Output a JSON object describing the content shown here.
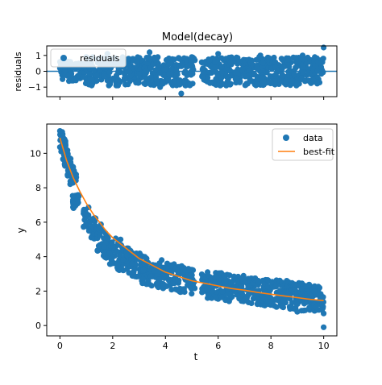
{
  "figure": {
    "title": "Model(decay)"
  },
  "colors": {
    "data": "#1f77b4",
    "fit": "#ff7f0e",
    "axes": "#000000",
    "legend_border": "#cccccc"
  },
  "chart_data": [
    {
      "type": "scatter",
      "panel": "residuals",
      "title": "Model(decay)",
      "xlabel": "",
      "ylabel": "residuals",
      "xlim": [
        -0.5,
        10.5
      ],
      "ylim": [
        -1.6,
        1.6
      ],
      "yticks": [
        -1,
        0,
        1
      ],
      "yticklabels": [
        "−1",
        "0",
        "1"
      ],
      "xticks": [
        0,
        2,
        4,
        6,
        8,
        10
      ],
      "show_xticklabels": false,
      "grid": false,
      "legend": {
        "position": "upper-left",
        "entries": [
          "residuals"
        ]
      },
      "reference_line": {
        "y": 0
      },
      "series": [
        {
          "name": "residuals",
          "style": "markers",
          "x": [
            0.0,
            0.1,
            0.2,
            0.3,
            0.4,
            1.0,
            1.4,
            1.8,
            2.2,
            2.6,
            3.0,
            3.4,
            3.8,
            4.2,
            4.6,
            5.0,
            5.6,
            6.0,
            6.4,
            6.8,
            7.2,
            7.6,
            8.0,
            8.4,
            8.8,
            9.2,
            9.6,
            10.0
          ],
          "y": [
            0.2,
            -0.5,
            0.5,
            -0.3,
            0.4,
            0.9,
            -0.6,
            1.1,
            -0.9,
            0.8,
            -0.2,
            1.2,
            -1.0,
            0.5,
            -1.4,
            0.9,
            -0.4,
            1.1,
            -0.8,
            0.6,
            -0.5,
            1.0,
            -0.7,
            0.8,
            -0.6,
            1.0,
            -0.5,
            1.5
          ],
          "band": {
            "x": [
              0.0,
              0.25,
              0.5,
              0.75,
              1.0,
              1.25,
              1.5,
              1.75,
              2.0,
              2.25,
              2.5,
              2.75,
              3.0,
              3.25,
              3.5,
              3.75,
              4.0,
              4.25,
              4.5,
              4.75,
              5.0,
              5.25,
              5.5,
              5.75,
              6.0,
              6.25,
              6.5,
              6.75,
              7.0,
              7.25,
              7.5,
              7.75,
              8.0,
              8.25,
              8.5,
              8.75,
              9.0,
              9.25,
              9.5,
              9.75,
              10.0
            ],
            "y": [
              0,
              0,
              0,
              0,
              0,
              0,
              0,
              0,
              0,
              0,
              0,
              0,
              0,
              0,
              0,
              0,
              0,
              0,
              0,
              0,
              0,
              0,
              0,
              0,
              0,
              0,
              0,
              0,
              0,
              0,
              0,
              0,
              0,
              0,
              0,
              0,
              0,
              0,
              0,
              0,
              0
            ],
            "spread": [
              0.7,
              0.7,
              0.6,
              0.5,
              0.9,
              0.9,
              0.9,
              0.9,
              0.9,
              0.9,
              0.9,
              0.9,
              0.9,
              0.9,
              0.9,
              0.9,
              0.9,
              0.9,
              0.9,
              0.9,
              0.9,
              0.0,
              0.7,
              0.9,
              0.9,
              0.9,
              0.9,
              0.9,
              0.9,
              0.9,
              0.9,
              0.9,
              0.9,
              0.9,
              0.9,
              0.9,
              0.9,
              0.9,
              0.9,
              0.9,
              0.9
            ]
          }
        }
      ]
    },
    {
      "type": "scatter",
      "panel": "fit",
      "title": "",
      "xlabel": "t",
      "ylabel": "y",
      "xlim": [
        -0.5,
        10.5
      ],
      "ylim": [
        -0.6,
        11.7
      ],
      "xticks": [
        0,
        2,
        4,
        6,
        8,
        10
      ],
      "xticklabels": [
        "0",
        "2",
        "4",
        "6",
        "8",
        "10"
      ],
      "yticks": [
        0,
        2,
        4,
        6,
        8,
        10
      ],
      "yticklabels": [
        "0",
        "2",
        "4",
        "6",
        "8",
        "10"
      ],
      "grid": false,
      "legend": {
        "position": "upper-right",
        "entries": [
          "data",
          "best-fit"
        ]
      },
      "series": [
        {
          "name": "data",
          "style": "markers",
          "band": {
            "x": [
              0.0,
              0.1,
              0.2,
              0.3,
              0.4,
              0.5,
              0.6,
              1.0,
              1.25,
              1.5,
              1.75,
              2.0,
              2.25,
              2.5,
              2.75,
              3.0,
              3.25,
              3.5,
              3.75,
              4.0,
              4.25,
              4.5,
              4.75,
              5.0,
              5.5,
              5.75,
              6.0,
              6.25,
              6.5,
              6.75,
              7.0,
              7.25,
              7.5,
              7.75,
              8.0,
              8.25,
              8.5,
              8.75,
              9.0,
              9.25,
              9.5,
              9.75,
              10.0
            ],
            "y": [
              11.0,
              10.5,
              10.0,
              9.5,
              9.0,
              8.6,
              7.2,
              6.3,
              5.6,
              5.1,
              4.7,
              4.3,
              4.0,
              3.8,
              3.6,
              3.4,
              3.2,
              3.1,
              3.0,
              2.9,
              2.8,
              2.7,
              2.6,
              2.5,
              2.4,
              2.35,
              2.3,
              2.25,
              2.2,
              2.15,
              2.1,
              2.05,
              2.0,
              1.95,
              1.9,
              1.85,
              1.8,
              1.75,
              1.7,
              1.65,
              1.6,
              1.55,
              1.5
            ],
            "spread": [
              0.3,
              0.4,
              0.4,
              0.4,
              0.4,
              0.4,
              0.4,
              0.6,
              0.7,
              0.8,
              0.8,
              0.8,
              0.8,
              0.8,
              0.8,
              0.8,
              0.8,
              0.8,
              0.8,
              0.8,
              0.8,
              0.8,
              0.8,
              0.8,
              0.6,
              0.8,
              0.8,
              0.8,
              0.8,
              0.8,
              0.8,
              0.8,
              0.8,
              0.8,
              0.8,
              0.8,
              0.8,
              0.8,
              0.8,
              0.8,
              0.8,
              0.8,
              0.8
            ]
          },
          "x": [
            0.0,
            0.05,
            0.5,
            0.55,
            1.0,
            1.1,
            2.3,
            4.8,
            5.6,
            5.6,
            7.5,
            8.6,
            9.0,
            10.0,
            10.0
          ],
          "y": [
            11.3,
            11.0,
            7.1,
            6.9,
            6.5,
            5.5,
            5.0,
            2.8,
            1.6,
            3.1,
            1.3,
            2.6,
            0.8,
            0.7,
            -0.1
          ]
        },
        {
          "name": "best-fit",
          "style": "line",
          "x": [
            0.0,
            0.25,
            0.5,
            0.75,
            1.0,
            1.25,
            1.5,
            1.75,
            2.0,
            2.5,
            3.0,
            3.5,
            4.0,
            4.5,
            5.0,
            5.5,
            6.0,
            6.5,
            7.0,
            7.5,
            8.0,
            8.5,
            9.0,
            9.5,
            10.0
          ],
          "y": [
            10.9,
            9.6,
            8.6,
            7.8,
            7.1,
            6.5,
            6.0,
            5.5,
            5.1,
            4.5,
            3.9,
            3.5,
            3.1,
            2.85,
            2.6,
            2.45,
            2.3,
            2.15,
            2.05,
            1.92,
            1.82,
            1.72,
            1.62,
            1.52,
            1.45
          ]
        }
      ]
    }
  ]
}
